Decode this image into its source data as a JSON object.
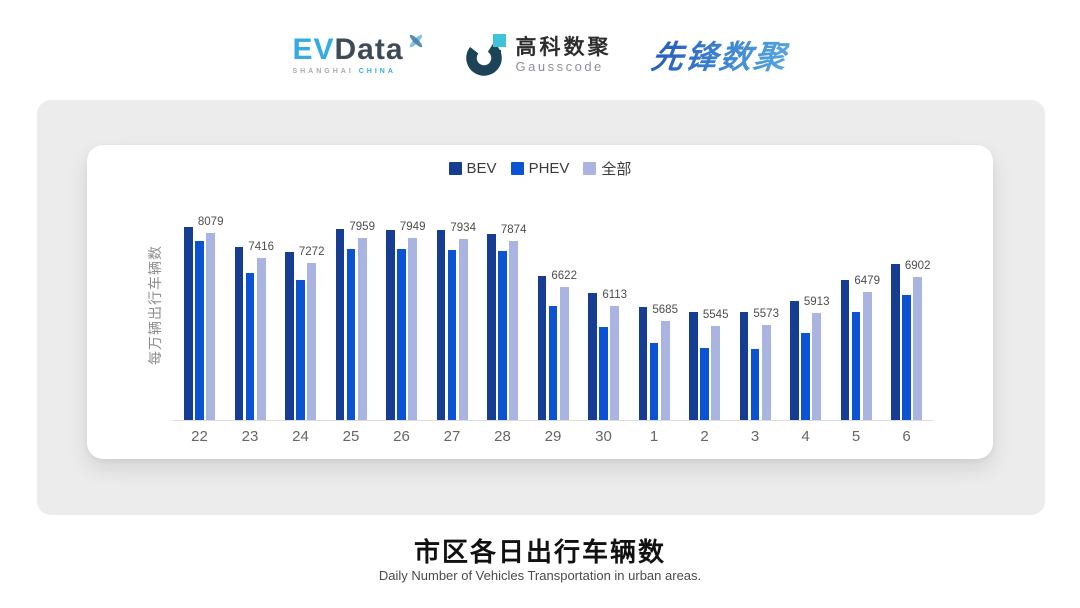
{
  "header": {
    "evdata": {
      "ev": "EV",
      "data": "Data",
      "sub_left": "SHANGHAI",
      "sub_right": "CHINA"
    },
    "gausscode": {
      "cn": "高科数聚",
      "en": "Gausscode"
    },
    "pioneer": {
      "text": "先锋数聚"
    }
  },
  "colors": {
    "bev": "#163D92",
    "phev": "#0B53D2",
    "all": "#AAB4E1",
    "panel_bg": "#ECECEC",
    "card_bg": "#FFFFFF",
    "axis_line": "#DCDCDC",
    "evdata_blue": "#33ACE0",
    "evdata_slate": "#3D4A58",
    "pioneer_blue": "#3E86D2"
  },
  "chart_data": {
    "type": "bar",
    "title": "市区各日出行车辆数",
    "subtitle": "Daily Number of Vehicles Transportation in urban areas.",
    "ylabel": "每万辆出行车辆数",
    "xlabel": "",
    "legend_position": "top",
    "gridlines": false,
    "categories": [
      "22",
      "23",
      "24",
      "25",
      "26",
      "27",
      "28",
      "29",
      "30",
      "1",
      "2",
      "3",
      "4",
      "5",
      "6"
    ],
    "series": [
      {
        "key": "bev",
        "name": "BEV",
        "color": "#163D92",
        "values": [
          8240,
          7700,
          7560,
          8190,
          8160,
          8180,
          8070,
          6930,
          6450,
          6070,
          5930,
          5950,
          6250,
          6820,
          7240
        ]
      },
      {
        "key": "phev",
        "name": "PHEV",
        "color": "#0B53D2",
        "values": [
          7860,
          6990,
          6800,
          7660,
          7640,
          7630,
          7590,
          6110,
          5530,
          5090,
          4950,
          4940,
          5360,
          5950,
          6390
        ]
      },
      {
        "key": "all",
        "name": "全部",
        "color": "#AAB4E1",
        "values": [
          8079,
          7416,
          7272,
          7959,
          7949,
          7934,
          7874,
          6622,
          6113,
          5685,
          5545,
          5573,
          5913,
          6479,
          6902
        ]
      }
    ],
    "value_labels": [
      "8079",
      "7416",
      "7272",
      "7959",
      "7949",
      "7934",
      "7874",
      "6622",
      "6113",
      "5685",
      "5545",
      "5573",
      "5913",
      "6479",
      "6902"
    ]
  },
  "footer": {
    "title": "市区各日出行车辆数",
    "subtitle": "Daily Number of Vehicles Transportation in urban areas."
  }
}
